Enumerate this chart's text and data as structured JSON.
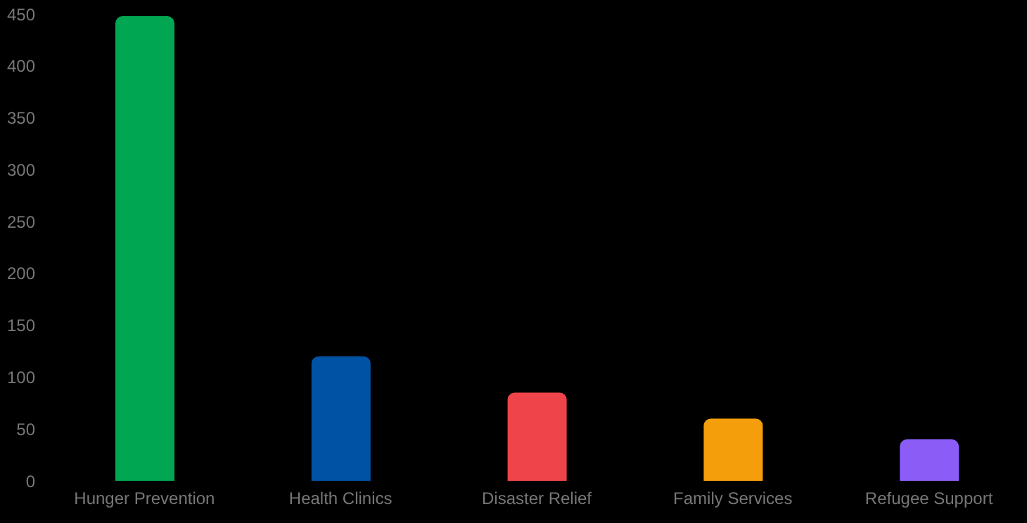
{
  "chart_data": {
    "type": "bar",
    "categories": [
      "Hunger Prevention",
      "Health Clinics",
      "Disaster Relief",
      "Family Services",
      "Refugee Support"
    ],
    "values": [
      448,
      120,
      85,
      60,
      40
    ],
    "colors": [
      "#00a651",
      "#0052a5",
      "#ef4449",
      "#f59e0b",
      "#8b5cf6"
    ],
    "ylim": [
      0,
      450
    ],
    "yticks": [
      0,
      50,
      100,
      150,
      200,
      250,
      300,
      350,
      400,
      450
    ],
    "grid": false,
    "legend": false
  }
}
